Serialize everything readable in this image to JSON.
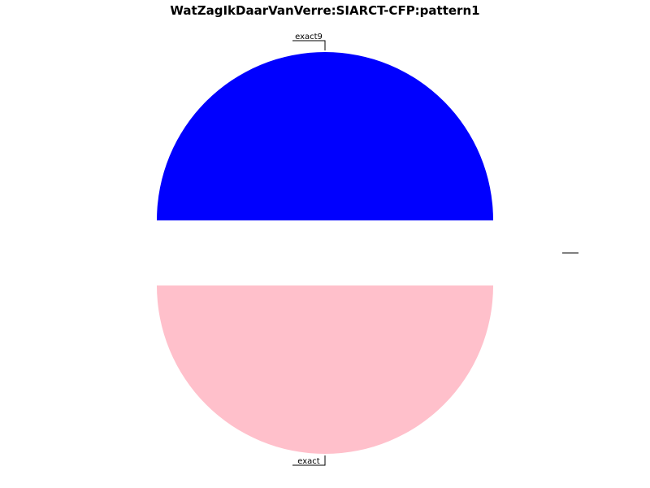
{
  "chart_data": {
    "type": "pie",
    "title": "WatZagIkDaarVanVerre:SIARCT-CFP:pattern1",
    "slices": [
      {
        "label": "exact9",
        "value": 50,
        "color": "#0000ff"
      },
      {
        "label": "",
        "value": 0,
        "color": "#ffffff"
      },
      {
        "label": "exact",
        "value": 50,
        "color": "#ffc0cb"
      }
    ],
    "legend": false
  }
}
